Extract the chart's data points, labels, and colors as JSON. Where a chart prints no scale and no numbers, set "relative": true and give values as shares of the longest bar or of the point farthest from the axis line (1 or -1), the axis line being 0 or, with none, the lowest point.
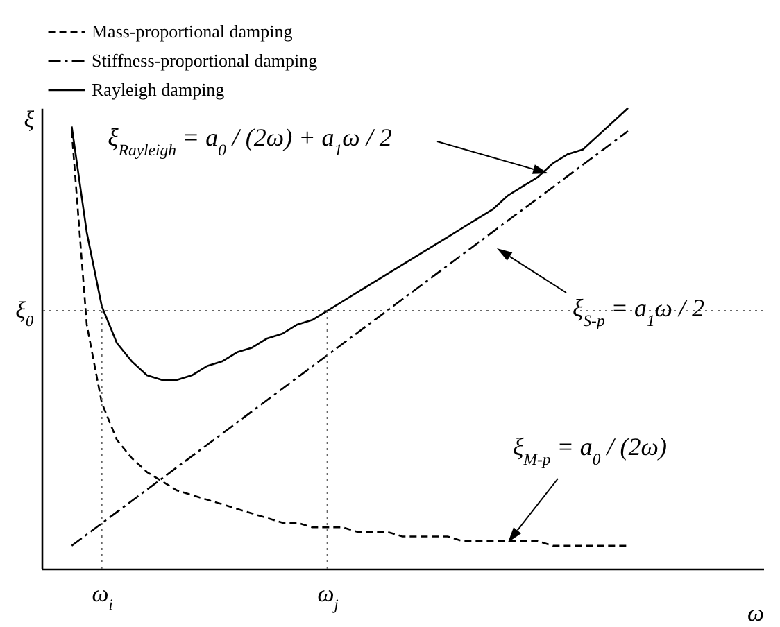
{
  "chart_data": {
    "type": "line",
    "relative": true,
    "xlabel": "ω",
    "ylabel": "ξ",
    "categories": [
      null,
      null,
      null,
      null,
      "ω$_{i}$",
      null,
      null,
      null,
      null,
      null,
      null,
      null,
      null,
      null,
      null,
      null,
      null,
      null,
      null,
      "ω$_{j}$",
      null,
      null,
      null,
      null,
      null,
      null,
      null,
      null,
      null,
      null,
      null,
      null,
      null,
      null,
      null,
      null,
      null,
      null,
      null,
      null,
      null,
      null,
      null,
      null,
      null,
      null,
      null,
      null,
      null
    ],
    "grid": false,
    "legend": "top left",
    "series": [
      {
        "name": "Mass-proportional damping",
        "color": "#000000",
        "line_style": "dashed",
        "values": [
          null,
          null,
          0.95,
          0.53,
          0.36,
          0.28,
          0.24,
          0.21,
          0.19,
          0.17,
          0.16,
          0.15,
          0.14,
          0.13,
          0.12,
          0.11,
          0.1,
          0.1,
          0.09,
          0.09,
          0.09,
          0.08,
          0.08,
          0.08,
          0.07,
          0.07,
          0.07,
          0.07,
          0.06,
          0.06,
          0.06,
          0.06,
          0.06,
          0.06,
          0.05,
          0.05,
          0.05,
          0.05,
          0.05,
          0.05,
          null,
          null,
          null,
          null,
          null,
          null,
          null,
          null,
          null
        ]
      },
      {
        "name": "Stiffness-proportional damping",
        "color": "#000000",
        "line_style": "dashdot",
        "values": [
          null,
          null,
          0.05,
          null,
          null,
          null,
          null,
          null,
          null,
          null,
          null,
          null,
          null,
          null,
          null,
          null,
          null,
          null,
          null,
          null,
          null,
          null,
          null,
          null,
          null,
          null,
          null,
          null,
          null,
          null,
          null,
          null,
          null,
          null,
          null,
          null,
          null,
          null,
          null,
          0.95,
          null,
          null,
          null,
          null,
          null,
          null,
          null,
          null,
          null
        ]
      },
      {
        "name": "Rayleigh damping",
        "color": "#000000",
        "line_style": "solid",
        "values": [
          null,
          null,
          0.96,
          0.73,
          0.57,
          0.49,
          0.45,
          0.42,
          0.41,
          0.41,
          0.42,
          0.44,
          0.45,
          0.47,
          0.48,
          0.5,
          0.51,
          0.53,
          0.54,
          0.56,
          0.58,
          0.6,
          0.62,
          0.64,
          0.66,
          0.68,
          0.7,
          0.72,
          0.74,
          0.76,
          0.78,
          0.81,
          0.83,
          0.85,
          0.88,
          0.9,
          0.91,
          0.94,
          0.97,
          1,
          null,
          null,
          null,
          null,
          null,
          null,
          null,
          null,
          null
        ]
      }
    ],
    "ref_lines": [
      {
        "axis": "x",
        "value": "ω$_{i}$",
        "line_style": "dotted"
      },
      {
        "axis": "x",
        "value": "ω$_{j}$",
        "line_style": "dotted"
      },
      {
        "axis": "y",
        "value": 0.56,
        "label": "ξ$_{0}$",
        "line_style": "dotted"
      }
    ],
    "annotations": [
      "ξ$_{Rayleigh}$ = a$_{0}$ / (2ω) + a$_{1}$ω / 2",
      "ξ$_{S-p}$ = a$_{1}$ω / 2",
      "ξ$_{M-p}$ = a$_{0}$ / (2ω)"
    ]
  }
}
